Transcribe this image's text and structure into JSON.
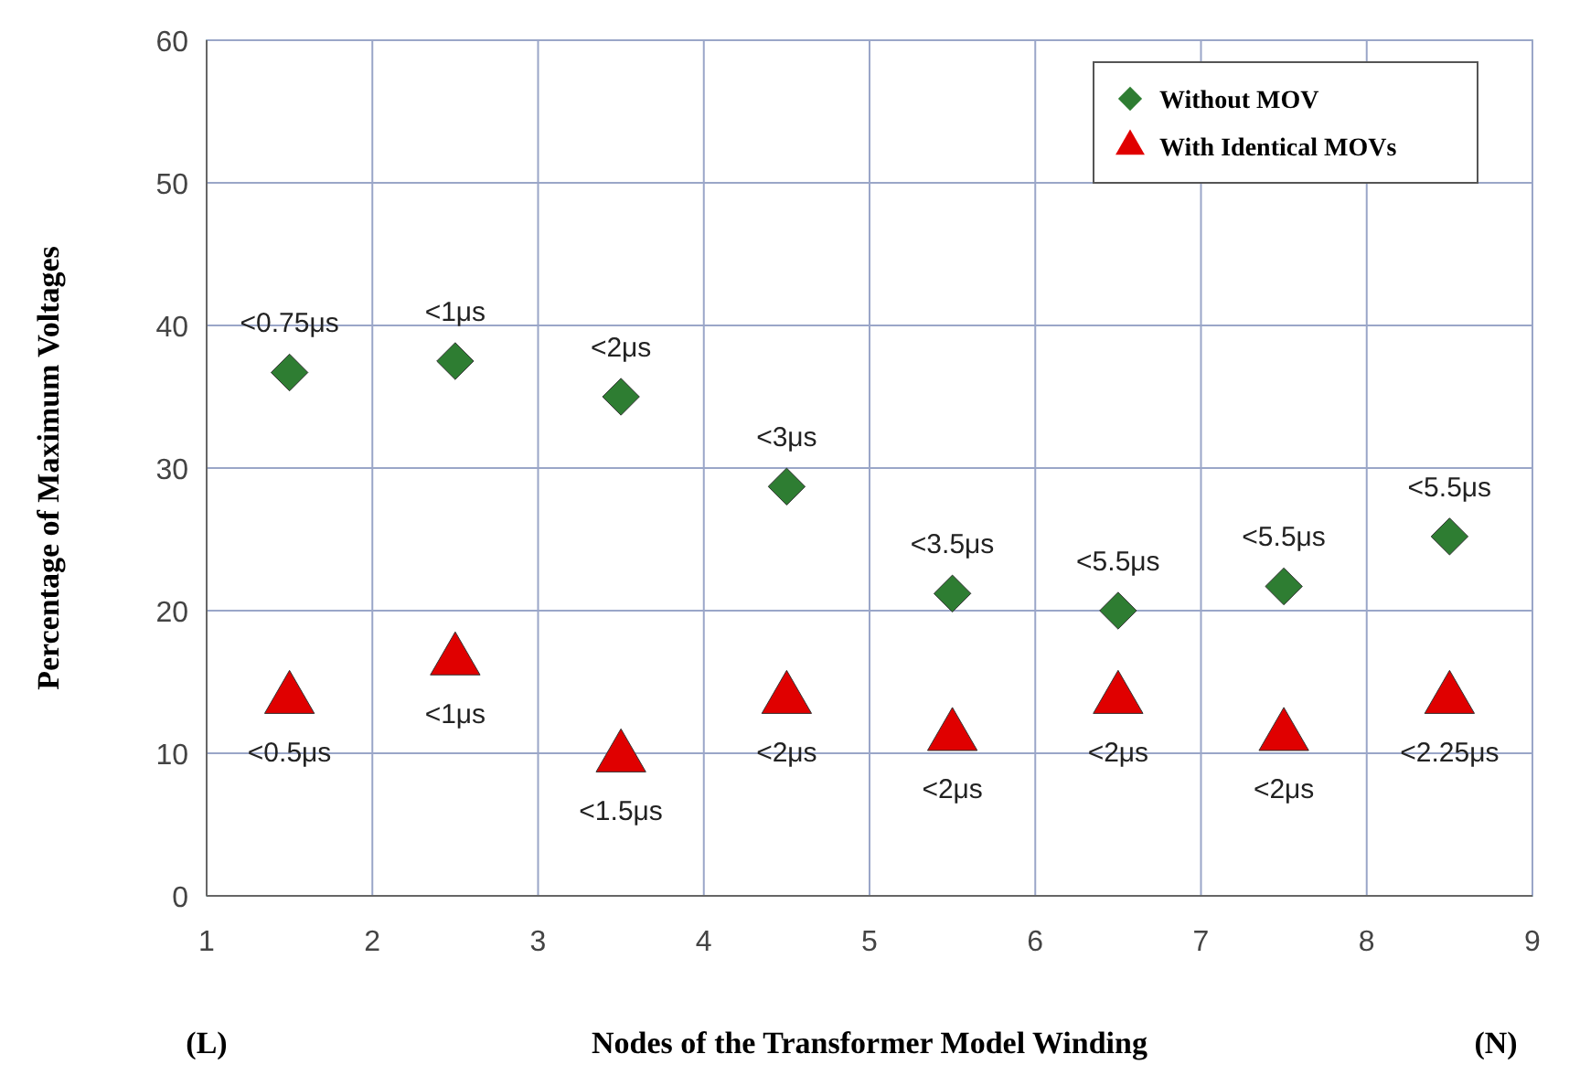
{
  "chart_data": {
    "type": "scatter",
    "xlabel": "Nodes of the Transformer Model Winding",
    "ylabel": "Percentage of Maximum Voltages",
    "x": [
      1.5,
      2.5,
      3.5,
      4.5,
      5.5,
      6.5,
      7.5,
      8.5
    ],
    "series": [
      {
        "name": "Without MOV",
        "color": "#2e7d32",
        "marker": "diamond",
        "values": [
          36.7,
          37.5,
          35,
          28.7,
          21.2,
          20,
          21.7,
          25.2
        ],
        "value_labels": [
          "<0.75μs",
          "<1μs",
          "<2μs",
          "<3μs",
          "<3.5μs",
          "<5.5μs",
          "<5.5μs",
          "<5.5μs"
        ]
      },
      {
        "name": "With Identical MOVs",
        "color": "#e00000",
        "marker": "triangle",
        "values": [
          13.8,
          16.5,
          9.7,
          13.8,
          11.2,
          13.8,
          11.2,
          13.8
        ],
        "value_labels": [
          "<0.5μs",
          "<1μs",
          "<1.5μs",
          "<2μs",
          "<2μs",
          "<2μs",
          "<2μs",
          "<2.25μs"
        ]
      }
    ],
    "xlim": [
      1,
      9
    ],
    "xticks": [
      1,
      2,
      3,
      4,
      5,
      6,
      7,
      8,
      9
    ],
    "ylim": [
      0,
      60
    ],
    "yticks": [
      0,
      10,
      20,
      30,
      40,
      50,
      60
    ],
    "grid": true,
    "legend": "top right",
    "annotations": [
      "(L)",
      "(N)"
    ]
  }
}
